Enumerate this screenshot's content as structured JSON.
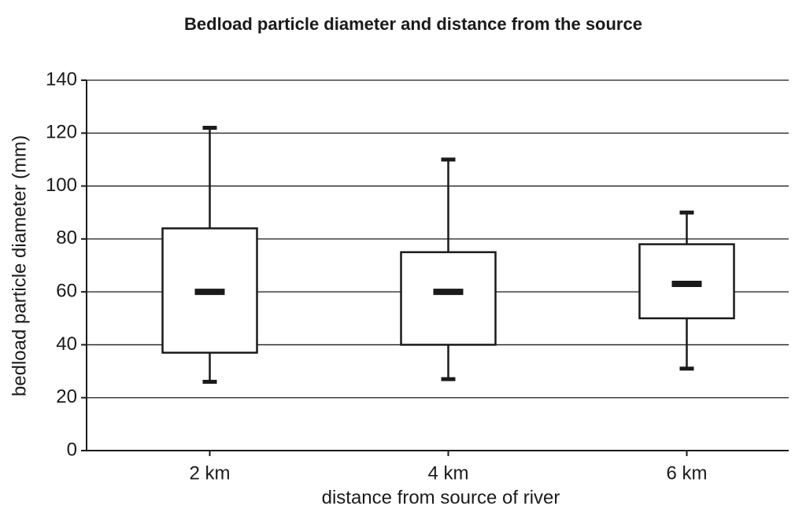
{
  "chart_data": {
    "type": "box",
    "title": "Bedload particle diameter and distance from the source",
    "x_label": "distance from source of river",
    "y_label": "bedload particle diameter (mm)",
    "categories": [
      "2 km",
      "4 km",
      "6 km"
    ],
    "min": [
      26,
      27,
      31
    ],
    "q1": [
      37,
      40,
      50
    ],
    "median": [
      60,
      60,
      63
    ],
    "q3": [
      84,
      75,
      78
    ],
    "max": [
      122,
      110,
      90
    ],
    "color": "#ffffff",
    "ylim": [
      0,
      140
    ],
    "yticks": [
      0,
      20,
      40,
      60,
      80,
      100,
      120,
      140
    ],
    "grid": true
  }
}
